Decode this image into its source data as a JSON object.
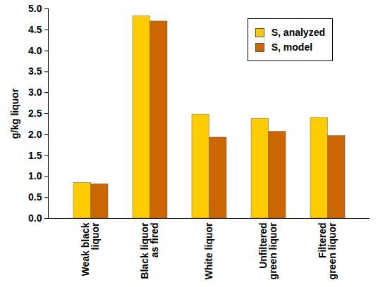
{
  "chart_data": {
    "type": "bar",
    "y_label": "g/kg liquor",
    "categories": [
      "Weak black liquor",
      "Black liquor as fired",
      "White liquor",
      "Unfiltered green liquor",
      "Filtered green liquor"
    ],
    "series": [
      {
        "name": "S, analyzed",
        "color": "#FFCC00",
        "values": [
          0.85,
          4.82,
          2.48,
          2.38,
          2.4
        ]
      },
      {
        "name": "S, model",
        "color": "#CC6600",
        "values": [
          0.82,
          4.7,
          1.93,
          2.07,
          1.97
        ]
      }
    ],
    "ylim": [
      0,
      5
    ],
    "yticks": [
      {
        "value": 0,
        "label": "0.0"
      },
      0.5,
      {
        "value": 1,
        "label": "1.0"
      },
      1.5,
      {
        "value": 2,
        "label": "2.0"
      },
      2.5,
      {
        "value": 3,
        "label": "3.0"
      },
      3.5,
      {
        "value": 4,
        "label": "4.0"
      },
      4.5,
      {
        "value": 5,
        "label": "5.0"
      }
    ],
    "legend": "top-right",
    "grid": false
  }
}
